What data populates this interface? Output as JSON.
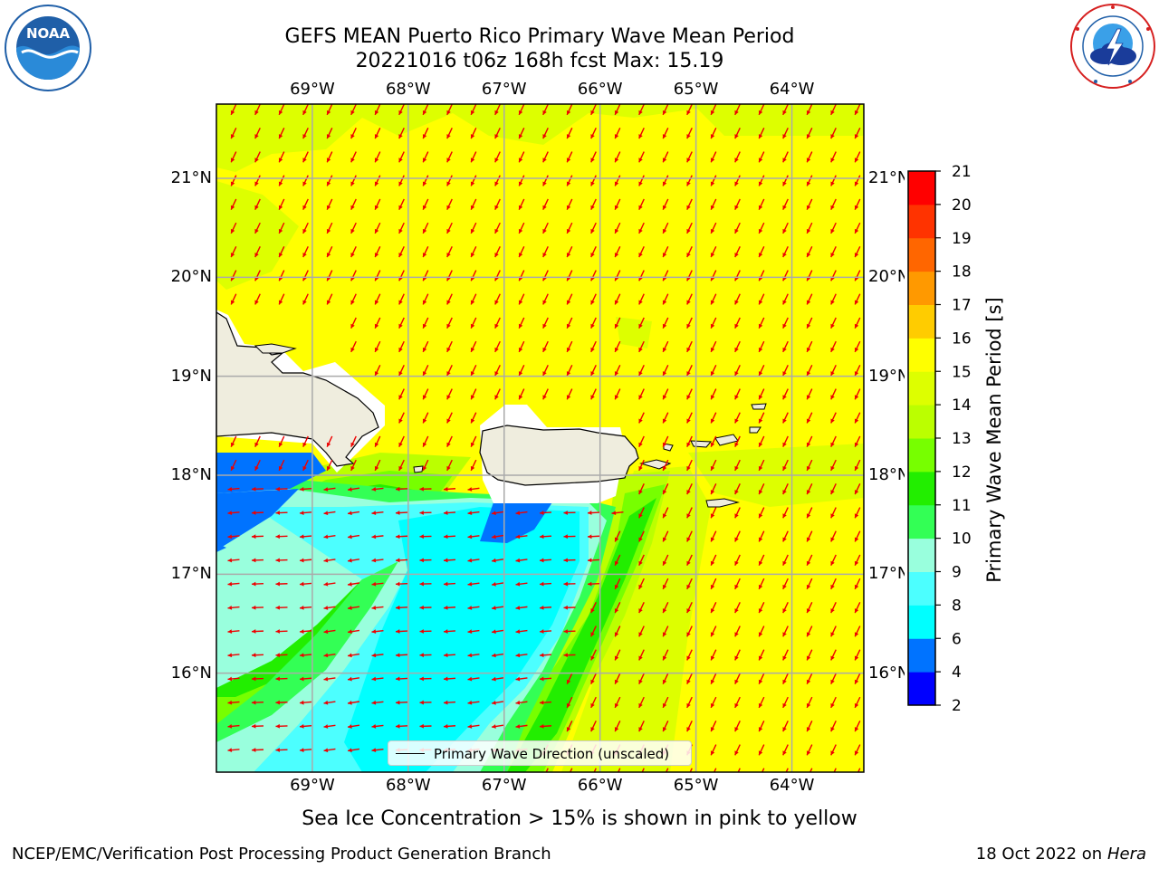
{
  "header": {
    "title_line1": "GEFS MEAN Puerto Rico Primary Wave Mean Period",
    "title_line2": "20221016 t06z 168h fcst   Max: 15.19"
  },
  "logos": {
    "left": {
      "name": "NOAA",
      "text": "NOAA",
      "ring_text": "NATIONAL OCEANIC AND ATMOSPHERIC ADMINISTRATION · U.S. DEPARTMENT OF COMMERCE",
      "color": "#1f5fa8"
    },
    "right": {
      "name": "National Weather Service",
      "ring_text": "NATIONAL WEATHER SERVICE",
      "color": "#d62020"
    }
  },
  "map": {
    "lon_labels": [
      "69°W",
      "68°W",
      "67°W",
      "66°W",
      "65°W",
      "64°W"
    ],
    "lat_labels": [
      "21°N",
      "20°N",
      "19°N",
      "18°N",
      "17°N",
      "16°N"
    ],
    "lon_range": [
      -70.0,
      -63.25
    ],
    "lat_range": [
      15.0,
      21.75
    ],
    "grid": true,
    "field": "Primary Wave Mean Period",
    "vector_field": "Primary Wave Direction"
  },
  "legend": {
    "label": "Primary Wave Direction (unscaled)",
    "placement": "bottom-center"
  },
  "colorbar": {
    "label": "Primary Wave Mean Period [s]",
    "levels": [
      2,
      4,
      6,
      8,
      9,
      10,
      11,
      12,
      13,
      14,
      15,
      16,
      17,
      18,
      19,
      20,
      21
    ],
    "colors": [
      "#0000ff",
      "#0073ff",
      "#00ffff",
      "#4cffff",
      "#99ffdd",
      "#33ff55",
      "#22ee00",
      "#77ff00",
      "#bbff00",
      "#ddff00",
      "#ffff00",
      "#ffcc00",
      "#ff9900",
      "#ff6600",
      "#ff3300",
      "#ff0000"
    ],
    "land_color": "#efedde",
    "arrow_color": "#ee0000"
  },
  "footer": {
    "caption": "Sea Ice Concentration > 15% is shown in pink to yellow",
    "credit_left": "NCEP/EMC/Verification Post Processing Product Generation Branch",
    "credit_date": "18 Oct 2022 on ",
    "credit_machine": "Hera"
  }
}
